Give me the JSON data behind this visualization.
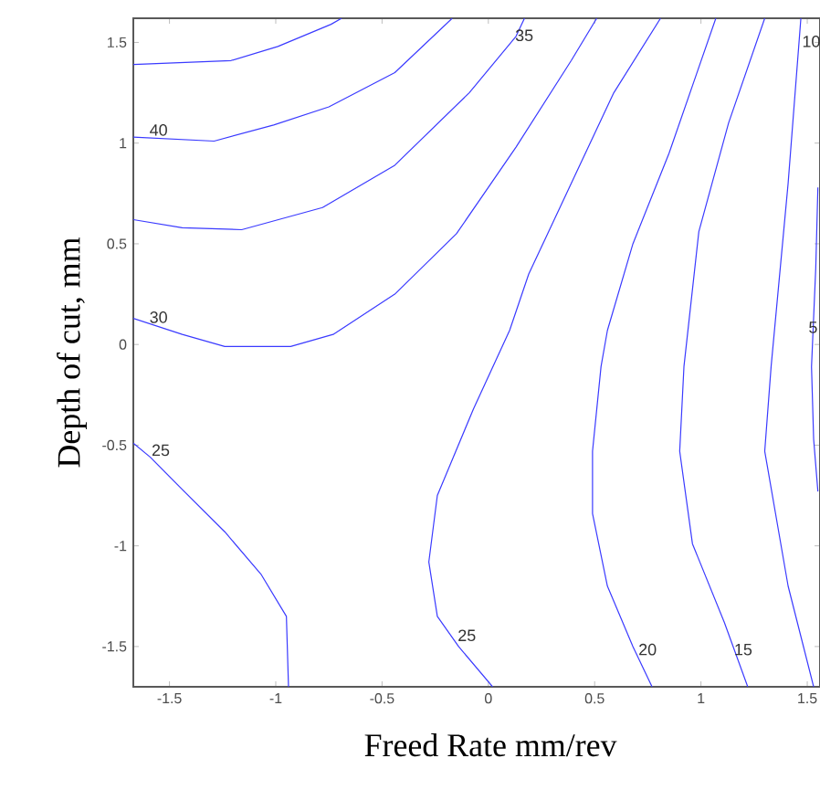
{
  "chart_data": {
    "type": "line",
    "xlabel": "Freed Rate mm/rev",
    "ylabel": "Depth of cut, mm",
    "xlim": [
      -1.67,
      1.56
    ],
    "ylim": [
      -1.7,
      1.62
    ],
    "xticks": [
      -1.5,
      -1,
      -0.5,
      0,
      0.5,
      1,
      1.5
    ],
    "yticks": [
      -1.5,
      -1,
      -0.5,
      0,
      0.5,
      1,
      1.5
    ],
    "marker": "none",
    "line_style": "solid",
    "series": [
      {
        "color": "#3a3aff",
        "x": [
          -1.67,
          -1.21,
          -0.99,
          -0.74,
          -0.69
        ],
        "values": [
          1.39,
          1.41,
          1.48,
          1.59,
          1.62
        ]
      },
      {
        "color": "#3a3aff",
        "x": [
          -1.67,
          -1.29,
          -1.01,
          -0.75,
          -0.44,
          -0.17
        ],
        "values": [
          1.03,
          1.01,
          1.09,
          1.18,
          1.35,
          1.62
        ]
      },
      {
        "color": "#3a3aff",
        "x": [
          -1.67,
          -1.44,
          -1.16,
          -0.78,
          -0.44,
          -0.09,
          0.13,
          0.17
        ],
        "values": [
          0.62,
          0.58,
          0.57,
          0.68,
          0.89,
          1.25,
          1.53,
          1.62
        ]
      },
      {
        "color": "#3a3aff",
        "x": [
          -1.67,
          -1.44,
          -1.24,
          -0.93,
          -0.73,
          -0.44,
          -0.15,
          0.13,
          0.39,
          0.51
        ],
        "values": [
          0.13,
          0.05,
          -0.01,
          -0.01,
          0.05,
          0.25,
          0.55,
          0.98,
          1.41,
          1.62
        ]
      },
      {
        "color": "#3a3aff",
        "x": [
          -1.67,
          -1.59,
          -1.44,
          -1.24,
          -1.07,
          -0.95,
          -0.94
        ],
        "values": [
          -0.49,
          -0.56,
          -0.72,
          -0.93,
          -1.14,
          -1.35,
          -1.7
        ]
      },
      {
        "color": "#3a3aff",
        "x": [
          0.81,
          0.59,
          0.39,
          0.19,
          0.1,
          -0.07,
          -0.24,
          -0.28,
          -0.24,
          -0.14,
          0.02
        ],
        "values": [
          1.62,
          1.25,
          0.8,
          0.35,
          0.07,
          -0.32,
          -0.75,
          -1.08,
          -1.35,
          -1.5,
          -1.7
        ]
      },
      {
        "color": "#3a3aff",
        "x": [
          1.07,
          0.85,
          0.68,
          0.56,
          0.53,
          0.49,
          0.49,
          0.56,
          0.68,
          0.77
        ],
        "values": [
          1.62,
          0.95,
          0.5,
          0.07,
          -0.11,
          -0.53,
          -0.84,
          -1.2,
          -1.5,
          -1.7
        ]
      },
      {
        "color": "#3a3aff",
        "x": [
          1.3,
          1.13,
          0.99,
          0.92,
          0.9,
          0.96,
          1.11,
          1.22
        ],
        "values": [
          1.62,
          1.1,
          0.56,
          -0.11,
          -0.53,
          -0.99,
          -1.38,
          -1.7
        ]
      },
      {
        "color": "#3a3aff",
        "x": [
          1.47,
          1.41,
          1.33,
          1.3,
          1.41,
          1.53
        ],
        "values": [
          1.62,
          0.8,
          -0.11,
          -0.53,
          -1.2,
          -1.7
        ]
      },
      {
        "color": "#3a3aff",
        "x": [
          1.55,
          1.54,
          1.52,
          1.53,
          1.55
        ],
        "values": [
          0.78,
          0.38,
          -0.11,
          -0.47,
          -0.73
        ]
      }
    ],
    "annotations": [
      {
        "text": "40",
        "x": -1.6,
        "y": 1.03
      },
      {
        "text": "35",
        "x": 0.12,
        "y": 1.5
      },
      {
        "text": "30",
        "x": -1.6,
        "y": 0.1
      },
      {
        "text": "25",
        "x": -1.59,
        "y": -0.56
      },
      {
        "text": "25",
        "x": -0.15,
        "y": -1.48
      },
      {
        "text": "20",
        "x": 0.7,
        "y": -1.55
      },
      {
        "text": "15",
        "x": 1.15,
        "y": -1.55
      },
      {
        "text": "10",
        "x": 1.47,
        "y": 1.47
      },
      {
        "text": "5",
        "x": 1.5,
        "y": 0.05
      }
    ]
  }
}
